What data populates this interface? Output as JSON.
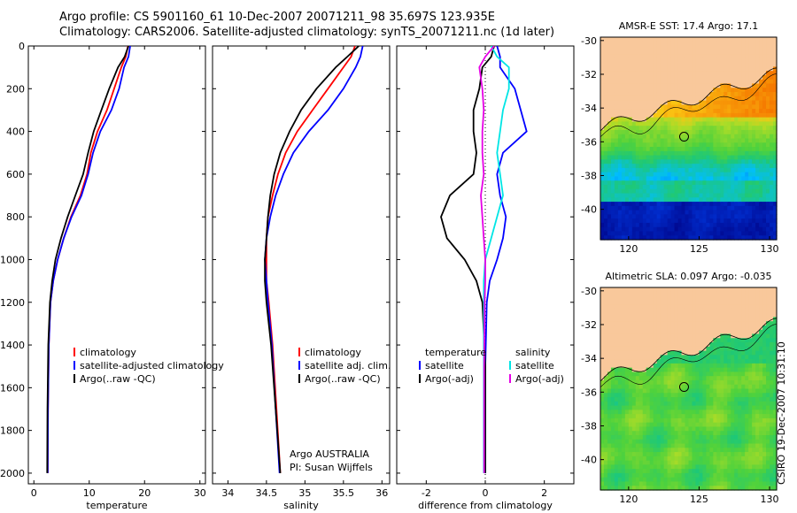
{
  "header": {
    "line1": "Argo profile: CS 5901160_61 10-Dec-2007 20071211_98 35.697S 123.935E",
    "line2": "Climatology: CARS2006. Satellite-adjusted climatology: synTS_20071211.nc (1d later)"
  },
  "stamp": "CSIRO 19-Dec-2007 10:31:10",
  "colors": {
    "climatology": "#ff0000",
    "satellite": "#0000ff",
    "argo": "#000000",
    "sat_diff": "#00e5e5",
    "argo_diff": "#e600e6",
    "land": "#f9c89b"
  },
  "chart_data": [
    {
      "type": "line",
      "xlabel": "temperature",
      "ylabel": "",
      "xlim": [
        -1,
        31
      ],
      "ylim": [
        2050,
        0
      ],
      "xticks": [
        0,
        10,
        20,
        30
      ],
      "yticks": [
        0,
        200,
        400,
        600,
        800,
        1000,
        1200,
        1400,
        1600,
        1800,
        2000
      ],
      "legend": [
        "climatology",
        "satellite-adjusted climatology",
        "Argo(..raw -QC)"
      ],
      "legend_position": "lower-center",
      "series": [
        {
          "name": "climatology",
          "color": "#ff0000",
          "x": [
            17.0,
            16.6,
            15.8,
            14.5,
            13.2,
            11.5,
            10.3,
            9.6,
            8.4,
            6.7,
            5.4,
            4.3,
            3.5,
            3.0,
            2.7,
            2.55,
            2.5
          ],
          "y": [
            0,
            50,
            100,
            200,
            300,
            400,
            500,
            600,
            700,
            800,
            900,
            1000,
            1100,
            1200,
            1400,
            1700,
            2000
          ]
        },
        {
          "name": "satellite-adjusted climatology",
          "color": "#0000ff",
          "x": [
            17.4,
            17.1,
            16.3,
            15.4,
            14.0,
            12.0,
            10.7,
            9.8,
            8.6,
            6.8,
            5.4,
            4.3,
            3.5,
            3.0,
            2.7,
            2.55,
            2.5
          ],
          "y": [
            0,
            50,
            100,
            200,
            300,
            400,
            500,
            600,
            700,
            800,
            900,
            1000,
            1100,
            1200,
            1400,
            1700,
            2000
          ]
        },
        {
          "name": "Argo(..raw -QC)",
          "color": "#000000",
          "x": [
            17.1,
            16.4,
            15.2,
            13.6,
            12.2,
            10.8,
            9.8,
            8.9,
            7.5,
            6.1,
            4.9,
            3.9,
            3.3,
            2.9,
            2.6,
            2.45,
            2.4
          ],
          "y": [
            0,
            50,
            100,
            200,
            300,
            400,
            500,
            600,
            700,
            800,
            900,
            1000,
            1100,
            1200,
            1400,
            1700,
            2000
          ]
        }
      ]
    },
    {
      "type": "line",
      "xlabel": "salinity",
      "xlim": [
        33.8,
        36.1
      ],
      "ylim": [
        2050,
        0
      ],
      "xticks": [
        34,
        34.5,
        35,
        35.5,
        36
      ],
      "legend": [
        "climatology",
        "satellite adj. clim.",
        "Argo(..raw -QC)"
      ],
      "annotation": [
        "Argo AUSTRALIA",
        "PI: Susan Wijffels"
      ],
      "series": [
        {
          "name": "climatology",
          "color": "#ff0000",
          "x": [
            35.65,
            35.6,
            35.5,
            35.3,
            35.1,
            34.9,
            34.75,
            34.65,
            34.58,
            34.52,
            34.5,
            34.5,
            34.5,
            34.53,
            34.58,
            34.63,
            34.68
          ],
          "y": [
            0,
            50,
            100,
            200,
            300,
            400,
            500,
            600,
            700,
            800,
            900,
            1000,
            1100,
            1200,
            1400,
            1700,
            2000
          ]
        },
        {
          "name": "satellite adj. clim.",
          "color": "#0000ff",
          "x": [
            35.75,
            35.72,
            35.66,
            35.5,
            35.3,
            35.05,
            34.85,
            34.72,
            34.62,
            34.55,
            34.5,
            34.48,
            34.5,
            34.52,
            34.57,
            34.62,
            34.67
          ],
          "y": [
            0,
            50,
            100,
            200,
            300,
            400,
            500,
            600,
            700,
            800,
            900,
            1000,
            1100,
            1200,
            1400,
            1700,
            2000
          ]
        },
        {
          "name": "Argo(..raw -QC)",
          "color": "#000000",
          "x": [
            35.7,
            35.55,
            35.4,
            35.15,
            34.95,
            34.8,
            34.68,
            34.6,
            34.55,
            34.52,
            34.5,
            34.48,
            34.48,
            34.5,
            34.56,
            34.62,
            34.68
          ],
          "y": [
            0,
            50,
            100,
            200,
            300,
            400,
            500,
            600,
            700,
            800,
            900,
            1000,
            1100,
            1200,
            1400,
            1700,
            2000
          ]
        }
      ]
    },
    {
      "type": "line",
      "xlabel": "difference from climatology",
      "xlim": [
        -3.0,
        3.0
      ],
      "ylim": [
        2050,
        0
      ],
      "xticks": [
        -2,
        0,
        2
      ],
      "legend_groups": [
        {
          "title": "temperature",
          "items": [
            "satellite",
            "Argo(-adj)"
          ]
        },
        {
          "title": "salinity",
          "items": [
            "satellite",
            "Argo(-adj)"
          ]
        }
      ],
      "series": [
        {
          "name": "temperature satellite",
          "color": "#0000ff",
          "x": [
            0.4,
            0.5,
            0.5,
            1.0,
            1.2,
            1.4,
            0.6,
            0.4,
            0.5,
            0.7,
            0.6,
            0.4,
            0.15,
            0.05,
            0.0,
            0.0
          ],
          "y": [
            0,
            50,
            100,
            200,
            300,
            400,
            500,
            600,
            700,
            800,
            900,
            1000,
            1100,
            1200,
            1500,
            2000
          ]
        },
        {
          "name": "temperature Argo(-adj)",
          "color": "#000000",
          "x": [
            0.3,
            0.2,
            -0.1,
            -0.2,
            -0.4,
            -0.4,
            -0.3,
            -0.4,
            -1.2,
            -1.5,
            -1.3,
            -0.7,
            -0.3,
            -0.1,
            0.0,
            0.0
          ],
          "y": [
            0,
            50,
            100,
            200,
            300,
            400,
            500,
            600,
            700,
            800,
            900,
            1000,
            1100,
            1200,
            1500,
            2000
          ]
        },
        {
          "name": "salinity satellite",
          "color": "#00e5e5",
          "x": [
            0.2,
            0.4,
            0.8,
            0.8,
            0.6,
            0.5,
            0.4,
            0.5,
            0.6,
            0.4,
            0.2,
            0.0,
            -0.05,
            -0.05,
            -0.05,
            -0.05
          ],
          "y": [
            0,
            50,
            100,
            200,
            300,
            400,
            500,
            600,
            700,
            800,
            900,
            1000,
            1100,
            1200,
            1500,
            2000
          ]
        },
        {
          "name": "salinity Argo(-adj)",
          "color": "#e600e6",
          "x": [
            0.3,
            0.0,
            -0.2,
            -0.1,
            -0.05,
            -0.1,
            -0.1,
            -0.05,
            -0.15,
            -0.1,
            -0.05,
            0.0,
            0.0,
            -0.02,
            -0.04,
            -0.04
          ],
          "y": [
            0,
            50,
            100,
            200,
            300,
            400,
            500,
            600,
            700,
            800,
            900,
            1000,
            1100,
            1200,
            1500,
            2000
          ]
        }
      ]
    },
    {
      "type": "heatmap",
      "title": "AMSR-E SST: 17.4  Argo: 17.1",
      "xlim": [
        118,
        130.5
      ],
      "ylim": [
        -41.8,
        -29.8
      ],
      "xticks": [
        120,
        125,
        130
      ],
      "yticks": [
        -30,
        -32,
        -34,
        -36,
        -38,
        -40
      ],
      "marker": {
        "lon": 123.935,
        "lat": -35.697
      }
    },
    {
      "type": "heatmap",
      "title": "Altimetric SLA: 0.097  Argo: -0.035",
      "xlim": [
        118,
        130.5
      ],
      "ylim": [
        -41.8,
        -29.8
      ],
      "xticks": [
        120,
        125,
        130
      ],
      "yticks": [
        -30,
        -32,
        -34,
        -36,
        -38,
        -40
      ],
      "marker": {
        "lon": 123.935,
        "lat": -35.697
      }
    }
  ]
}
